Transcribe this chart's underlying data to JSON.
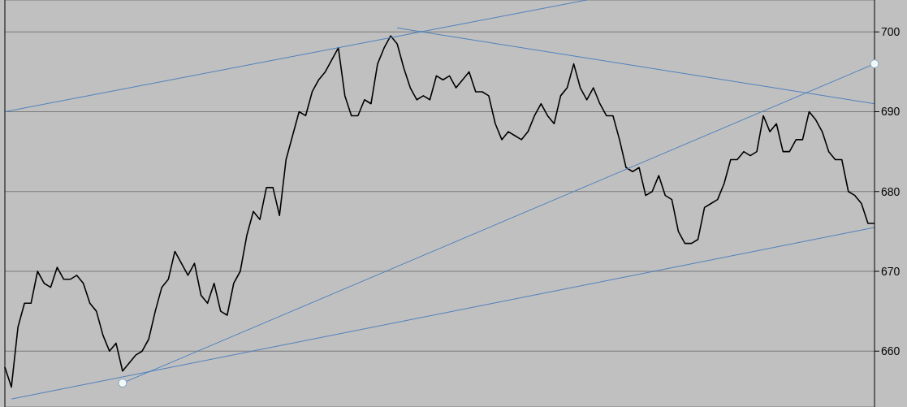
{
  "chart_data": {
    "type": "line",
    "categories": [
      null,
      null,
      null,
      null,
      null,
      null,
      null,
      null,
      null,
      null,
      null,
      null,
      null,
      null,
      null,
      null,
      null,
      null,
      null,
      null,
      null,
      null,
      null,
      null,
      null,
      null,
      null,
      null,
      null,
      null,
      null,
      null,
      null,
      null,
      null,
      null,
      null,
      null,
      null,
      null,
      null,
      null,
      null,
      null,
      null,
      null,
      null,
      null,
      null,
      null,
      null,
      null,
      null,
      null,
      null,
      null,
      null,
      null,
      null,
      null,
      null,
      null,
      null,
      null,
      null,
      null,
      null,
      null,
      null,
      null,
      null,
      null,
      null,
      null,
      null,
      null,
      null,
      null,
      null,
      null,
      null,
      null,
      null,
      null,
      null,
      null,
      null,
      null,
      null,
      null,
      null,
      null,
      null,
      null,
      null,
      null,
      null,
      null,
      null,
      null,
      null,
      null,
      null,
      null,
      null,
      null,
      null,
      null,
      null,
      null,
      null,
      null,
      null,
      null,
      null,
      null,
      null,
      null,
      null,
      null,
      null,
      null,
      null,
      null,
      null,
      null,
      null,
      null,
      null,
      null,
      null,
      null,
      null,
      null
    ],
    "series": [
      {
        "color": "#000000",
        "values": [
          658,
          655.5,
          663,
          666,
          666,
          670,
          668.5,
          668,
          670.5,
          669,
          669,
          669.5,
          668.5,
          666,
          665,
          662,
          660,
          661,
          657.5,
          658.5,
          659.5,
          660,
          661.5,
          665,
          668,
          669,
          672.5,
          671,
          669.5,
          671,
          667,
          666,
          668.5,
          665,
          664.5,
          668.5,
          670,
          674.5,
          677.5,
          676.5,
          680.5,
          680.5,
          677,
          684,
          687,
          690,
          689.5,
          692.5,
          694,
          695,
          696.5,
          698,
          692,
          689.5,
          689.5,
          691.5,
          691,
          696,
          698,
          699.5,
          698.5,
          695.5,
          693,
          691.5,
          692,
          691.5,
          694.5,
          694,
          694.5,
          693,
          694,
          695,
          692.5,
          692.5,
          692,
          688.5,
          686.5,
          687.5,
          687,
          686.5,
          687.5,
          689.5,
          691,
          689.5,
          688.5,
          692,
          693,
          696,
          693,
          691.5,
          693,
          691,
          689.5,
          689.5,
          686.5,
          683,
          682.5,
          683,
          679.5,
          680,
          682,
          679.5,
          679,
          675,
          673.5,
          673.5,
          674,
          678,
          678.5,
          679,
          681,
          684,
          684,
          685,
          684.5,
          685,
          689.5,
          687.5,
          688.5,
          685,
          685,
          686.5,
          686.5,
          690,
          689,
          687.5,
          685,
          684,
          684,
          680,
          679.5,
          678.5,
          676,
          676
        ]
      },
      {
        "color": "#4f81bd",
        "values": [
          690,
          null,
          null,
          null,
          null,
          null,
          null,
          null,
          null,
          null,
          null,
          null,
          null,
          null,
          null,
          null,
          null,
          null,
          null,
          null,
          null,
          null,
          null,
          null,
          null,
          null,
          null,
          null,
          null,
          null,
          null,
          null,
          null,
          null,
          null,
          null,
          null,
          null,
          null,
          null,
          null,
          null,
          null,
          null,
          null,
          null,
          null,
          null,
          null,
          null,
          null,
          null,
          null,
          null,
          null,
          null,
          null,
          null,
          null,
          null,
          null,
          null,
          null,
          null,
          null,
          null,
          null,
          null,
          null,
          null,
          null,
          null,
          null,
          null,
          null,
          null,
          null,
          null,
          null,
          null,
          null,
          null,
          null,
          null,
          null,
          null,
          null,
          null,
          null,
          704,
          null,
          null,
          null,
          null,
          null,
          null,
          null,
          null,
          null,
          null,
          null,
          null,
          null,
          null,
          null,
          null,
          null,
          null,
          null,
          null,
          null,
          null,
          null,
          null,
          null,
          null,
          null,
          null,
          null,
          null,
          null,
          null,
          null,
          null,
          null,
          null,
          null,
          null,
          null,
          null,
          null,
          null,
          null,
          null
        ]
      },
      {
        "color": "#4f81bd",
        "values": [
          null,
          null,
          null,
          null,
          null,
          null,
          null,
          null,
          null,
          null,
          null,
          null,
          null,
          null,
          null,
          null,
          null,
          null,
          null,
          null,
          null,
          null,
          null,
          null,
          null,
          null,
          null,
          null,
          null,
          null,
          null,
          null,
          null,
          null,
          null,
          null,
          null,
          null,
          null,
          null,
          null,
          null,
          null,
          null,
          null,
          null,
          null,
          null,
          null,
          null,
          null,
          null,
          null,
          null,
          null,
          null,
          null,
          null,
          null,
          null,
          700.5,
          null,
          null,
          null,
          null,
          null,
          null,
          null,
          null,
          null,
          null,
          null,
          null,
          null,
          null,
          null,
          null,
          null,
          null,
          null,
          null,
          null,
          null,
          null,
          null,
          null,
          null,
          null,
          null,
          null,
          null,
          null,
          null,
          null,
          null,
          null,
          null,
          null,
          null,
          null,
          null,
          null,
          null,
          null,
          null,
          null,
          null,
          null,
          null,
          null,
          null,
          null,
          null,
          null,
          null,
          null,
          null,
          null,
          null,
          null,
          null,
          null,
          null,
          null,
          null,
          null,
          null,
          null,
          null,
          null,
          null,
          null,
          null,
          691
        ]
      },
      {
        "color": "#4f81bd",
        "marker": "circle",
        "values": [
          null,
          null,
          null,
          null,
          null,
          null,
          null,
          null,
          null,
          null,
          null,
          null,
          null,
          null,
          null,
          null,
          null,
          null,
          656,
          null,
          null,
          null,
          null,
          null,
          null,
          null,
          null,
          null,
          null,
          null,
          null,
          null,
          null,
          null,
          null,
          null,
          null,
          null,
          null,
          null,
          null,
          null,
          null,
          null,
          null,
          null,
          null,
          null,
          null,
          null,
          null,
          null,
          null,
          null,
          null,
          null,
          null,
          null,
          null,
          null,
          null,
          null,
          null,
          null,
          null,
          null,
          null,
          null,
          null,
          null,
          null,
          null,
          null,
          null,
          null,
          null,
          null,
          null,
          null,
          null,
          null,
          null,
          null,
          null,
          null,
          null,
          null,
          null,
          null,
          null,
          null,
          null,
          null,
          null,
          null,
          null,
          null,
          null,
          null,
          null,
          null,
          null,
          null,
          null,
          null,
          null,
          null,
          null,
          null,
          null,
          null,
          null,
          null,
          null,
          null,
          null,
          null,
          null,
          null,
          null,
          null,
          null,
          null,
          null,
          null,
          null,
          null,
          null,
          null,
          null,
          null,
          null,
          null,
          696
        ]
      },
      {
        "color": "#4f81bd",
        "values": [
          null,
          654,
          null,
          null,
          null,
          null,
          null,
          null,
          null,
          null,
          null,
          null,
          null,
          null,
          null,
          null,
          null,
          null,
          null,
          null,
          null,
          null,
          null,
          null,
          null,
          null,
          null,
          null,
          null,
          null,
          null,
          null,
          null,
          null,
          null,
          null,
          null,
          null,
          null,
          null,
          null,
          null,
          null,
          null,
          null,
          null,
          null,
          null,
          null,
          null,
          null,
          null,
          null,
          null,
          null,
          null,
          null,
          null,
          null,
          null,
          null,
          null,
          null,
          null,
          null,
          null,
          null,
          null,
          null,
          null,
          null,
          null,
          null,
          null,
          null,
          null,
          null,
          null,
          null,
          null,
          null,
          null,
          null,
          null,
          null,
          null,
          null,
          null,
          null,
          null,
          null,
          null,
          null,
          null,
          null,
          null,
          null,
          null,
          null,
          null,
          null,
          null,
          null,
          null,
          null,
          null,
          null,
          null,
          null,
          null,
          null,
          null,
          null,
          null,
          null,
          null,
          null,
          null,
          null,
          null,
          null,
          null,
          null,
          null,
          null,
          null,
          null,
          null,
          null,
          null,
          null,
          null,
          null,
          675.5
        ]
      }
    ],
    "ylim": [
      653,
      704
    ],
    "yticks": [
      660,
      670,
      680,
      690,
      700
    ],
    "grid": "y",
    "marker": "none",
    "line_style": "solid",
    "tick_labels": "y"
  }
}
